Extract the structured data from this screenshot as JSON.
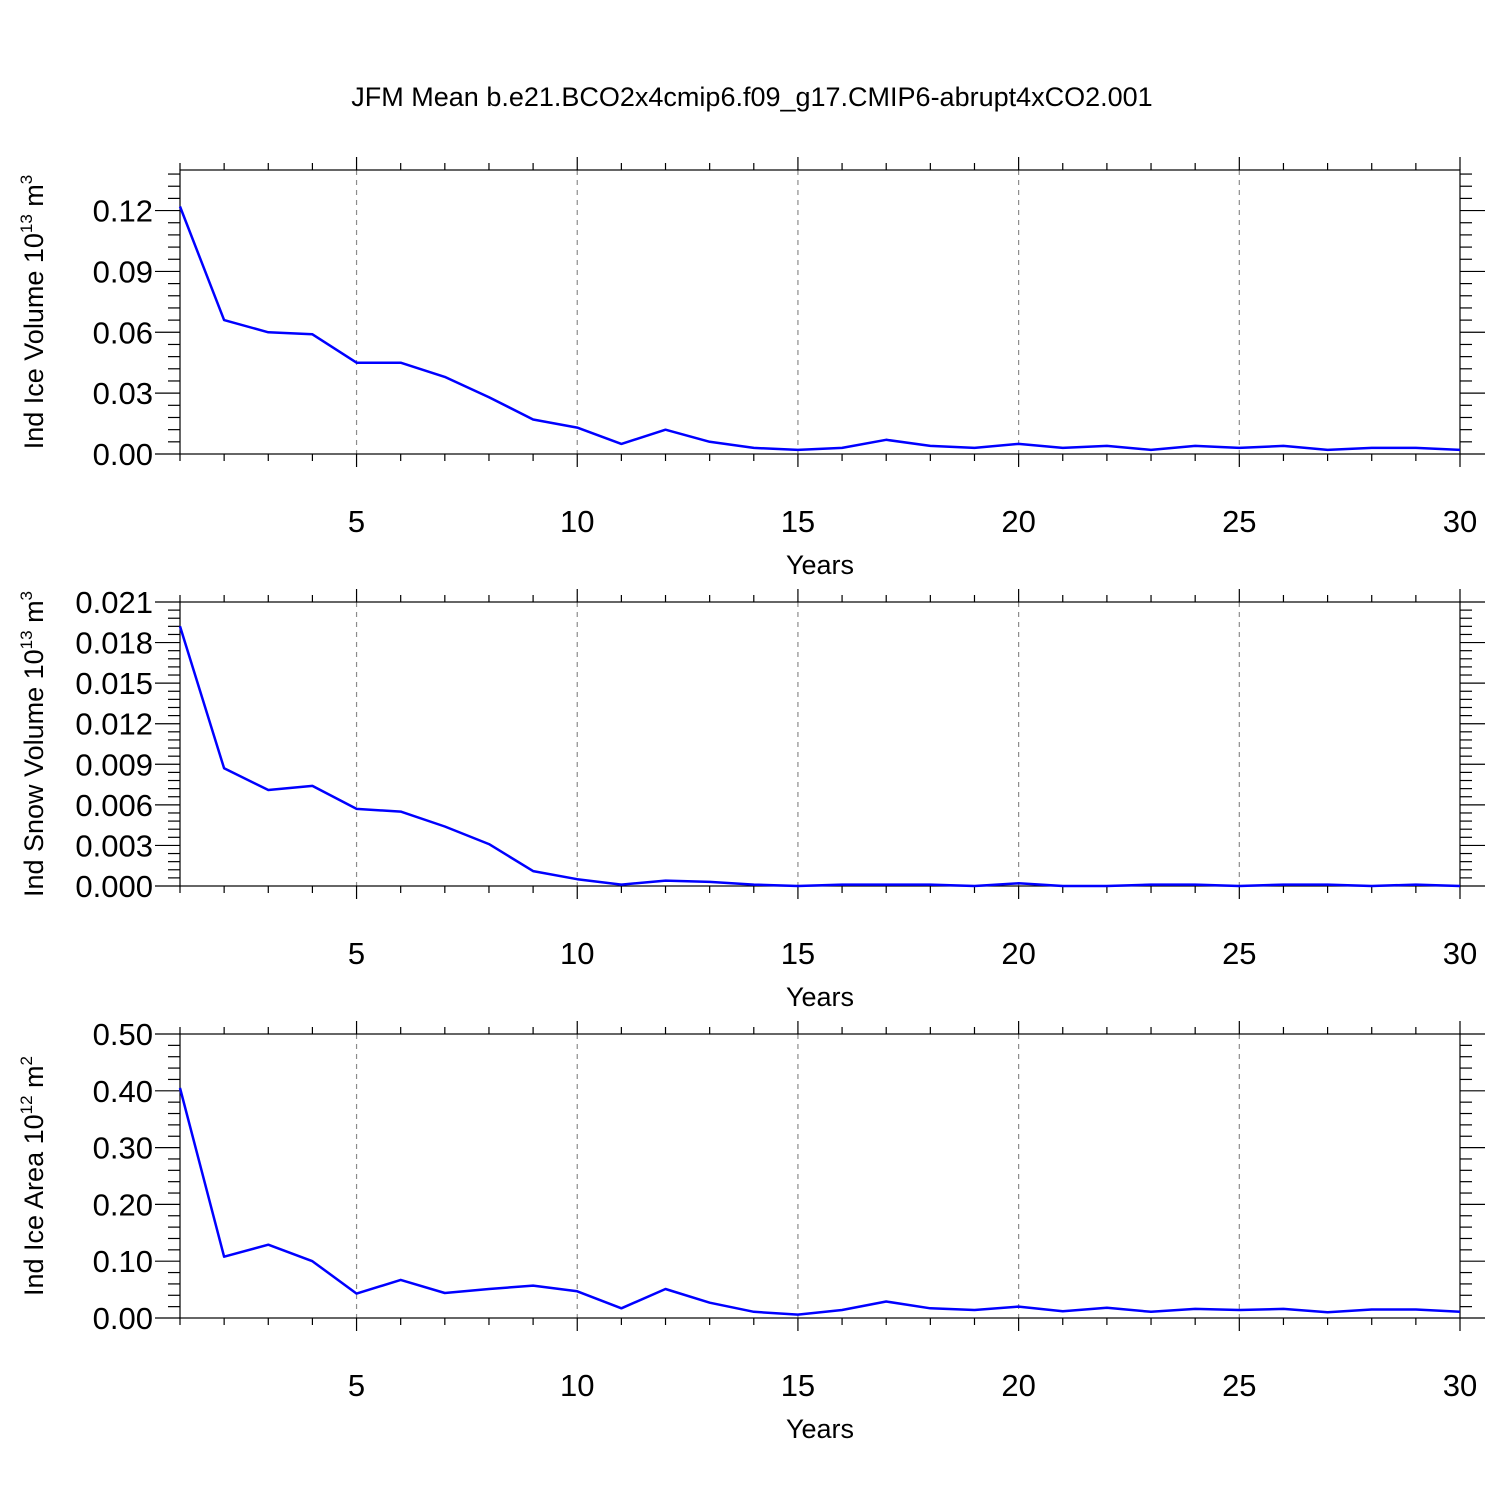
{
  "figure": {
    "title": "JFM Mean b.e21.BCO2x4cmip6.f09_g17.CMIP6-abrupt4xCO2.001"
  },
  "chart_data": [
    {
      "type": "line",
      "ylabel": "Ind Ice Volume 10",
      "ylabel_exponent": "13",
      "ylabel_unit": " m",
      "ylabel_unit_exponent": "3",
      "xlabel": "Years",
      "xlim": [
        1,
        30
      ],
      "ylim": [
        0,
        0.14
      ],
      "xticks": [
        5,
        10,
        15,
        20,
        25,
        30
      ],
      "xtick_labels": [
        "5",
        "10",
        "15",
        "20",
        "25",
        "30"
      ],
      "yticks": [
        0,
        0.03,
        0.06,
        0.09,
        0.12
      ],
      "ytick_labels": [
        "0.00",
        "0.03",
        "0.06",
        "0.09",
        "0.12"
      ],
      "y_minor_step": 0.006,
      "grid": "vertical dashed at major x ticks",
      "line_color": "#0000ff",
      "x": [
        1,
        2,
        3,
        4,
        5,
        6,
        7,
        8,
        9,
        10,
        11,
        12,
        13,
        14,
        15,
        16,
        17,
        18,
        19,
        20,
        21,
        22,
        23,
        24,
        25,
        26,
        27,
        28,
        29,
        30
      ],
      "values": [
        0.122,
        0.066,
        0.06,
        0.059,
        0.045,
        0.045,
        0.038,
        0.028,
        0.017,
        0.013,
        0.005,
        0.012,
        0.006,
        0.003,
        0.002,
        0.003,
        0.007,
        0.004,
        0.003,
        0.005,
        0.003,
        0.004,
        0.002,
        0.004,
        0.003,
        0.004,
        0.002,
        0.003,
        0.003,
        0.002
      ]
    },
    {
      "type": "line",
      "ylabel": "Ind Snow Volume 10",
      "ylabel_exponent": "13",
      "ylabel_unit": " m",
      "ylabel_unit_exponent": "3",
      "xlabel": "Years",
      "xlim": [
        1,
        30
      ],
      "ylim": [
        0,
        0.021
      ],
      "xticks": [
        5,
        10,
        15,
        20,
        25,
        30
      ],
      "xtick_labels": [
        "5",
        "10",
        "15",
        "20",
        "25",
        "30"
      ],
      "yticks": [
        0,
        0.003,
        0.006,
        0.009,
        0.012,
        0.015,
        0.018,
        0.021
      ],
      "ytick_labels": [
        "0.000",
        "0.003",
        "0.006",
        "0.009",
        "0.012",
        "0.015",
        "0.018",
        "0.021"
      ],
      "y_minor_step": 0.0006,
      "grid": "vertical dashed at major x ticks",
      "line_color": "#0000ff",
      "x": [
        1,
        2,
        3,
        4,
        5,
        6,
        7,
        8,
        9,
        10,
        11,
        12,
        13,
        14,
        15,
        16,
        17,
        18,
        19,
        20,
        21,
        22,
        23,
        24,
        25,
        26,
        27,
        28,
        29,
        30
      ],
      "values": [
        0.0192,
        0.0087,
        0.0071,
        0.0074,
        0.0057,
        0.0055,
        0.0044,
        0.0031,
        0.0011,
        0.0005,
        0.0001,
        0.0004,
        0.0003,
        0.0001,
        0.0,
        0.0001,
        0.0001,
        0.0001,
        0.0,
        0.0002,
        0.0,
        0.0,
        0.0001,
        0.0001,
        0.0,
        0.0001,
        0.0001,
        0.0,
        0.0001,
        0.0
      ]
    },
    {
      "type": "line",
      "ylabel": "Ind Ice Area 10",
      "ylabel_exponent": "12",
      "ylabel_unit": " m",
      "ylabel_unit_exponent": "2",
      "xlabel": "Years",
      "xlim": [
        1,
        30
      ],
      "ylim": [
        0,
        0.5
      ],
      "xticks": [
        5,
        10,
        15,
        20,
        25,
        30
      ],
      "xtick_labels": [
        "5",
        "10",
        "15",
        "20",
        "25",
        "30"
      ],
      "yticks": [
        0,
        0.1,
        0.2,
        0.3,
        0.4,
        0.5
      ],
      "ytick_labels": [
        "0.00",
        "0.10",
        "0.20",
        "0.30",
        "0.40",
        "0.50"
      ],
      "y_minor_step": 0.02,
      "grid": "vertical dashed at major x ticks",
      "line_color": "#0000ff",
      "x": [
        1,
        2,
        3,
        4,
        5,
        6,
        7,
        8,
        9,
        10,
        11,
        12,
        13,
        14,
        15,
        16,
        17,
        18,
        19,
        20,
        21,
        22,
        23,
        24,
        25,
        26,
        27,
        28,
        29,
        30
      ],
      "values": [
        0.405,
        0.108,
        0.129,
        0.1,
        0.043,
        0.067,
        0.044,
        0.051,
        0.057,
        0.047,
        0.017,
        0.051,
        0.027,
        0.011,
        0.006,
        0.014,
        0.029,
        0.017,
        0.014,
        0.02,
        0.012,
        0.018,
        0.011,
        0.016,
        0.014,
        0.016,
        0.01,
        0.015,
        0.015,
        0.011
      ]
    }
  ]
}
